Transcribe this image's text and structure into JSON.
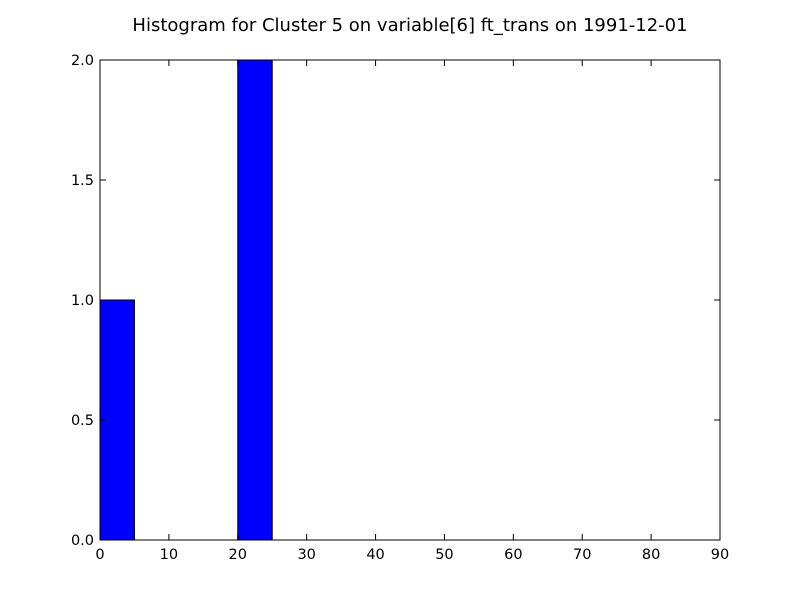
{
  "chart_data": {
    "type": "bar",
    "title": "Histogram for Cluster 5 on variable[6] ft_trans on 1991-12-01",
    "xlabel": "",
    "ylabel": "",
    "bins": [
      {
        "x_start": 0,
        "x_end": 5,
        "count": 1
      },
      {
        "x_start": 20,
        "x_end": 25,
        "count": 2
      }
    ],
    "xlim": [
      0,
      90
    ],
    "ylim": [
      0.0,
      2.0
    ],
    "x_ticks": [
      "0",
      "10",
      "20",
      "30",
      "40",
      "50",
      "60",
      "70",
      "80",
      "90"
    ],
    "y_ticks": [
      "0.0",
      "0.5",
      "1.0",
      "1.5",
      "2.0"
    ],
    "grid": false,
    "bar_color": "#0000ff",
    "bar_edge_color": "#000000"
  }
}
